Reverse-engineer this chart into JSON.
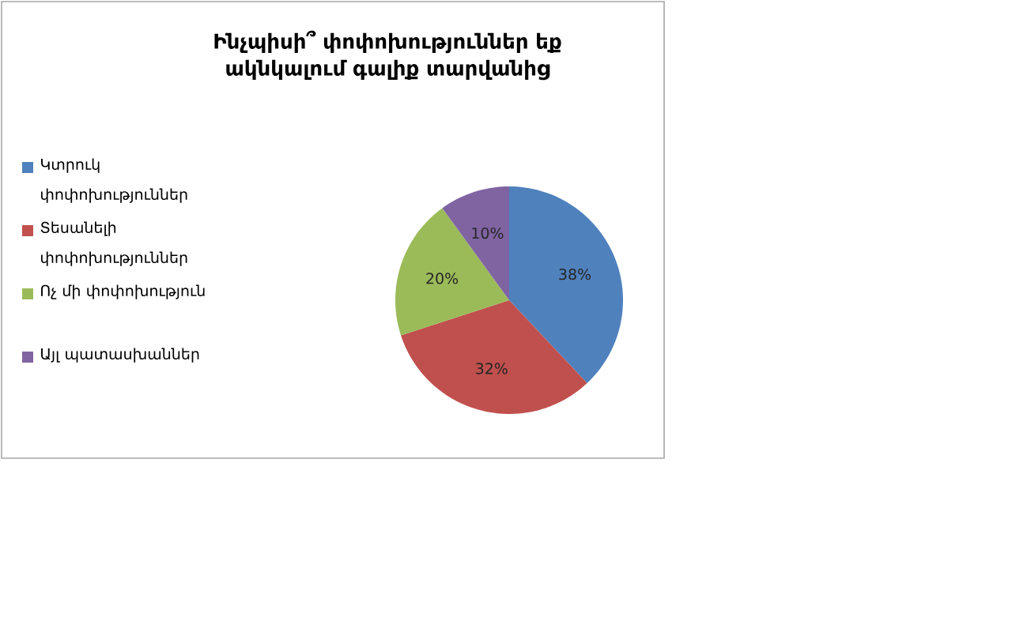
{
  "chart_data": {
    "type": "pie",
    "title": "Ինչպիսի՞ փոփոխություններ եք ակնկալում գալիք տարվանից",
    "categories": [
      "Կտրուկ փոփոխություններ",
      "Տեսանելի փոփոխություններ",
      "Ոչ մի փոփոխություն",
      "Այլ պատասխաններ"
    ],
    "values": [
      38,
      32,
      20,
      10
    ],
    "colors": [
      "#4f81bd",
      "#c0504d",
      "#9bbb59",
      "#8064a2"
    ],
    "value_labels": [
      "38%",
      "32%",
      "20%",
      "10%"
    ],
    "legend": "left"
  }
}
